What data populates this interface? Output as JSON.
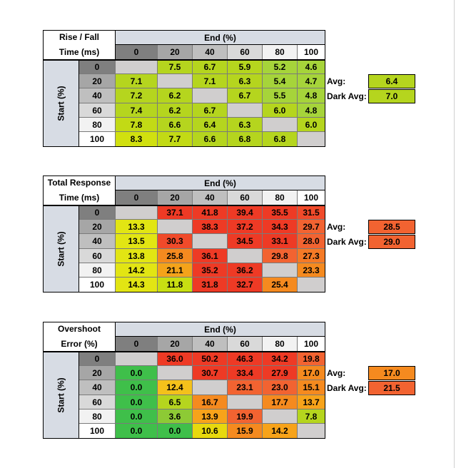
{
  "col_labels": [
    "0",
    "20",
    "40",
    "60",
    "80",
    "100"
  ],
  "row_labels": [
    "0",
    "20",
    "40",
    "60",
    "80",
    "100"
  ],
  "end_header": "End (%)",
  "start_header": "Start (%)",
  "avg_label": "Avg:",
  "dark_avg_label": "Dark Avg:",
  "tables": [
    {
      "title_line1": "Rise / Fall",
      "title_line2": "Time (ms)",
      "avg": "6.4",
      "dark_avg": "7.0",
      "avg_color": "#b5d51e",
      "dark_avg_color": "#b5d51e",
      "rows": [
        [
          "",
          "7.5",
          "6.7",
          "5.9",
          "5.2",
          "4.6"
        ],
        [
          "7.1",
          "",
          "7.1",
          "6.3",
          "5.4",
          "4.7"
        ],
        [
          "7.2",
          "6.2",
          "",
          "6.7",
          "5.5",
          "4.8"
        ],
        [
          "7.4",
          "6.2",
          "6.7",
          "",
          "6.0",
          "4.8"
        ],
        [
          "7.8",
          "6.6",
          "6.4",
          "6.3",
          "",
          "6.0"
        ],
        [
          "8.3",
          "7.7",
          "6.6",
          "6.8",
          "6.8",
          ""
        ]
      ],
      "colors": [
        [
          "",
          "#b5d51e",
          "#b5d51e",
          "#b5d51e",
          "#a6d43a",
          "#a6d43a"
        ],
        [
          "#b5d51e",
          "",
          "#b5d51e",
          "#b5d51e",
          "#a6d43a",
          "#a6d43a"
        ],
        [
          "#b5d51e",
          "#b5d51e",
          "",
          "#b5d51e",
          "#a6d43a",
          "#a6d43a"
        ],
        [
          "#b5d51e",
          "#b5d51e",
          "#b5d51e",
          "",
          "#b5d51e",
          "#a6d43a"
        ],
        [
          "#c2da15",
          "#b5d51e",
          "#b5d51e",
          "#b5d51e",
          "",
          "#b5d51e"
        ],
        [
          "#d1e00f",
          "#c2da15",
          "#b5d51e",
          "#b5d51e",
          "#b5d51e",
          ""
        ]
      ]
    },
    {
      "title_line1": "Total Response",
      "title_line2": "Time (ms)",
      "avg": "28.5",
      "dark_avg": "29.0",
      "avg_color": "#f26331",
      "dark_avg_color": "#f26331",
      "rows": [
        [
          "",
          "37.1",
          "41.8",
          "39.4",
          "35.5",
          "31.5"
        ],
        [
          "13.3",
          "",
          "38.3",
          "37.2",
          "34.3",
          "29.7"
        ],
        [
          "13.5",
          "30.3",
          "",
          "34.5",
          "33.1",
          "28.0"
        ],
        [
          "13.8",
          "25.8",
          "36.1",
          "",
          "29.8",
          "27.3"
        ],
        [
          "14.2",
          "21.1",
          "35.2",
          "36.2",
          "",
          "23.3"
        ],
        [
          "14.3",
          "11.8",
          "31.8",
          "32.7",
          "25.4",
          ""
        ]
      ],
      "colors": [
        [
          "",
          "#ee3a25",
          "#ee3a25",
          "#ee3a25",
          "#ee3a25",
          "#f04a2a"
        ],
        [
          "#e2e513",
          "",
          "#ee3a25",
          "#ee3a25",
          "#ee3a25",
          "#f26331"
        ],
        [
          "#e2e513",
          "#f04a2a",
          "",
          "#ee3a25",
          "#ee3a25",
          "#f26331"
        ],
        [
          "#e2e513",
          "#f58a1f",
          "#ee3a25",
          "",
          "#f26331",
          "#f57a26"
        ],
        [
          "#e2e513",
          "#f4a31a",
          "#ee3a25",
          "#ee3a25",
          "",
          "#f58a1f"
        ],
        [
          "#e2e513",
          "#c8df12",
          "#ee3a25",
          "#ee3a25",
          "#f58a1f",
          ""
        ]
      ]
    },
    {
      "title_line1": "Overshoot",
      "title_line2": "Error (%)",
      "avg": "17.0",
      "dark_avg": "21.5",
      "avg_color": "#f58a1f",
      "dark_avg_color": "#f26331",
      "rows": [
        [
          "",
          "36.0",
          "50.2",
          "46.3",
          "34.2",
          "19.8"
        ],
        [
          "0.0",
          "",
          "30.7",
          "33.4",
          "27.9",
          "17.0"
        ],
        [
          "0.0",
          "12.4",
          "",
          "23.1",
          "23.0",
          "15.1"
        ],
        [
          "0.0",
          "6.5",
          "16.7",
          "",
          "17.7",
          "13.7"
        ],
        [
          "0.0",
          "3.6",
          "13.9",
          "19.9",
          "",
          "7.8"
        ],
        [
          "0.0",
          "0.0",
          "10.6",
          "15.9",
          "14.2",
          ""
        ]
      ],
      "colors": [
        [
          "",
          "#ee3a25",
          "#ee3a25",
          "#ee3a25",
          "#ee3a25",
          "#f26331"
        ],
        [
          "#3fbf4a",
          "",
          "#ee3a25",
          "#ee3a25",
          "#ee3a25",
          "#f58a1f"
        ],
        [
          "#3fbf4a",
          "#f4c11b",
          "",
          "#f26331",
          "#f26331",
          "#f58a1f"
        ],
        [
          "#3fbf4a",
          "#b5d51e",
          "#f58a1f",
          "",
          "#f58a1f",
          "#f7a31a"
        ],
        [
          "#3fbf4a",
          "#8dca35",
          "#f7a31a",
          "#f26331",
          "",
          "#b5d51e"
        ],
        [
          "#3fbf4a",
          "#3fbf4a",
          "#e7d90e",
          "#f58a1f",
          "#f7a31a",
          ""
        ]
      ]
    }
  ]
}
